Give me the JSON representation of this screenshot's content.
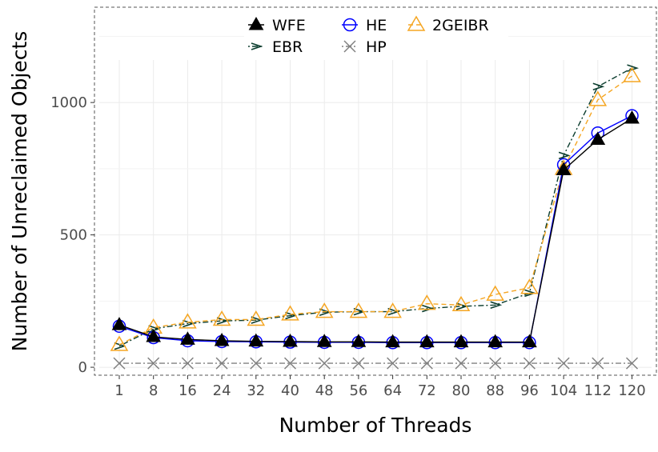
{
  "chart_data": {
    "type": "line",
    "xlabel": "Number of Threads",
    "ylabel": "Number of Unreclaimed Objects",
    "categories": [
      "1",
      "8",
      "16",
      "24",
      "32",
      "40",
      "48",
      "56",
      "64",
      "72",
      "80",
      "88",
      "96",
      "104",
      "112",
      "120"
    ],
    "y_ticks": [
      "0",
      "500",
      "1000"
    ],
    "ylim": [
      -30,
      1360
    ],
    "grid": true,
    "legend_position": "top",
    "series": [
      {
        "name": "WFE",
        "color": "#000000",
        "marker": "filled-triangle",
        "dash": "solid",
        "values": [
          160,
          115,
          105,
          100,
          98,
          97,
          96,
          96,
          95,
          95,
          95,
          95,
          95,
          745,
          860,
          940
        ]
      },
      {
        "name": "EBR",
        "color": "#0b3d2e",
        "marker": "chevron",
        "dash": "dotdash",
        "values": [
          80,
          145,
          165,
          175,
          178,
          195,
          208,
          210,
          210,
          222,
          230,
          235,
          280,
          800,
          1060,
          1130
        ]
      },
      {
        "name": "HE",
        "color": "#0000ff",
        "marker": "open-circle",
        "dash": "solid",
        "values": [
          155,
          112,
          100,
          97,
          96,
          95,
          94,
          94,
          93,
          93,
          93,
          93,
          93,
          765,
          885,
          950
        ]
      },
      {
        "name": "HP",
        "color": "#808080",
        "marker": "cross",
        "dash": "dotdash",
        "values": [
          15,
          15,
          15,
          15,
          15,
          15,
          15,
          15,
          15,
          15,
          15,
          15,
          15,
          15,
          15,
          15
        ]
      },
      {
        "name": "2GEIBR",
        "color": "#f5a623",
        "marker": "open-triangle",
        "dash": "dashed",
        "values": [
          85,
          150,
          170,
          180,
          180,
          200,
          210,
          210,
          210,
          240,
          235,
          275,
          300,
          750,
          1010,
          1100
        ]
      }
    ]
  }
}
